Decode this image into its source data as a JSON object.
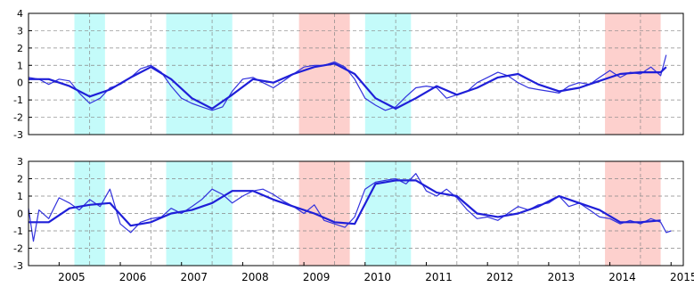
{
  "chart_data": [
    {
      "type": "line",
      "panel": "top",
      "xlim": [
        2004.5,
        2015.2
      ],
      "ylim": [
        -3,
        4
      ],
      "yticks": [
        4,
        3,
        2,
        1,
        0,
        -1,
        -2,
        -3
      ],
      "grid": true,
      "shaded_periods": [
        {
          "start": 2005.25,
          "end": 2005.75,
          "color": "#c4fbfa"
        },
        {
          "start": 2006.75,
          "end": 2007.83,
          "color": "#c4fbfa"
        },
        {
          "start": 2008.92,
          "end": 2009.75,
          "color": "#fdd0cd"
        },
        {
          "start": 2010.0,
          "end": 2010.75,
          "color": "#c4fbfa"
        },
        {
          "start": 2013.92,
          "end": 2014.83,
          "color": "#fdd0cd"
        }
      ],
      "series": [
        {
          "color": "#3333dd",
          "width": 1.2,
          "x": [
            2004.5,
            2004.67,
            2004.83,
            2005.0,
            2005.17,
            2005.33,
            2005.5,
            2005.67,
            2005.83,
            2006.0,
            2006.17,
            2006.33,
            2006.5,
            2006.67,
            2006.83,
            2007.0,
            2007.17,
            2007.33,
            2007.5,
            2007.67,
            2007.83,
            2008.0,
            2008.17,
            2008.33,
            2008.5,
            2008.67,
            2008.83,
            2009.0,
            2009.17,
            2009.33,
            2009.5,
            2009.67,
            2009.83,
            2010.0,
            2010.17,
            2010.33,
            2010.5,
            2010.67,
            2010.83,
            2011.0,
            2011.17,
            2011.33,
            2011.5,
            2011.67,
            2011.83,
            2012.0,
            2012.17,
            2012.33,
            2012.5,
            2012.67,
            2012.83,
            2013.0,
            2013.17,
            2013.33,
            2013.5,
            2013.67,
            2013.83,
            2014.0,
            2014.17,
            2014.33,
            2014.5,
            2014.67,
            2014.83,
            2014.92
          ],
          "y": [
            0.3,
            0.2,
            -0.1,
            0.2,
            0.1,
            -0.6,
            -1.2,
            -0.9,
            -0.3,
            -0.1,
            0.3,
            0.8,
            1.0,
            0.6,
            -0.2,
            -0.9,
            -1.2,
            -1.4,
            -1.6,
            -1.4,
            -0.5,
            0.2,
            0.3,
            0.0,
            -0.3,
            0.1,
            0.5,
            0.9,
            1.0,
            1.0,
            1.2,
            0.9,
            0.2,
            -0.9,
            -1.3,
            -1.6,
            -1.4,
            -0.8,
            -0.3,
            -0.2,
            -0.3,
            -0.9,
            -0.7,
            -0.5,
            0.0,
            0.3,
            0.6,
            0.4,
            0.0,
            -0.3,
            -0.4,
            -0.5,
            -0.6,
            -0.2,
            0.0,
            -0.1,
            0.3,
            0.7,
            0.3,
            0.6,
            0.5,
            0.9,
            0.4,
            1.6
          ]
        },
        {
          "color": "#1f1fd8",
          "width": 2.2,
          "x": [
            2004.5,
            2004.83,
            2005.17,
            2005.5,
            2005.83,
            2006.17,
            2006.5,
            2006.83,
            2007.17,
            2007.5,
            2007.83,
            2008.17,
            2008.5,
            2008.83,
            2009.17,
            2009.5,
            2009.83,
            2010.17,
            2010.5,
            2010.83,
            2011.17,
            2011.5,
            2011.83,
            2012.17,
            2012.5,
            2012.83,
            2013.17,
            2013.5,
            2013.83,
            2014.17,
            2014.5,
            2014.83,
            2014.92
          ],
          "y": [
            0.2,
            0.2,
            -0.2,
            -0.8,
            -0.4,
            0.3,
            0.9,
            0.2,
            -0.9,
            -1.5,
            -0.7,
            0.2,
            0.0,
            0.5,
            0.9,
            1.1,
            0.5,
            -0.9,
            -1.5,
            -0.9,
            -0.2,
            -0.7,
            -0.3,
            0.3,
            0.5,
            -0.1,
            -0.5,
            -0.3,
            0.1,
            0.5,
            0.6,
            0.6,
            0.9
          ]
        }
      ]
    },
    {
      "type": "line",
      "panel": "bottom",
      "xlim": [
        2004.5,
        2015.2
      ],
      "ylim": [
        -3,
        3
      ],
      "yticks": [
        3,
        2,
        1,
        0,
        -1,
        -2,
        -3
      ],
      "grid": true,
      "x_tick_labels": [
        "2005",
        "2006",
        "2007",
        "2008",
        "2009",
        "2010",
        "2011",
        "2012",
        "2013",
        "2014",
        "2015"
      ],
      "x_tick_values": [
        2005,
        2006,
        2007,
        2008,
        2009,
        2010,
        2011,
        2012,
        2013,
        2014,
        2015
      ],
      "shaded_periods": [
        {
          "start": 2005.25,
          "end": 2005.75,
          "color": "#c4fbfa"
        },
        {
          "start": 2006.75,
          "end": 2007.83,
          "color": "#c4fbfa"
        },
        {
          "start": 2008.92,
          "end": 2009.75,
          "color": "#fdd0cd"
        },
        {
          "start": 2010.0,
          "end": 2010.75,
          "color": "#c4fbfa"
        },
        {
          "start": 2013.92,
          "end": 2014.83,
          "color": "#fdd0cd"
        }
      ],
      "series": [
        {
          "color": "#3333dd",
          "width": 1.2,
          "x": [
            2004.5,
            2004.58,
            2004.67,
            2004.83,
            2005.0,
            2005.17,
            2005.33,
            2005.5,
            2005.67,
            2005.83,
            2006.0,
            2006.17,
            2006.33,
            2006.5,
            2006.67,
            2006.83,
            2007.0,
            2007.17,
            2007.33,
            2007.5,
            2007.67,
            2007.83,
            2008.0,
            2008.17,
            2008.33,
            2008.5,
            2008.67,
            2008.83,
            2009.0,
            2009.17,
            2009.33,
            2009.5,
            2009.67,
            2009.83,
            2010.0,
            2010.17,
            2010.33,
            2010.5,
            2010.67,
            2010.83,
            2011.0,
            2011.17,
            2011.33,
            2011.5,
            2011.67,
            2011.83,
            2012.0,
            2012.17,
            2012.33,
            2012.5,
            2012.67,
            2012.83,
            2013.0,
            2013.17,
            2013.33,
            2013.5,
            2013.67,
            2013.83,
            2014.0,
            2014.17,
            2014.33,
            2014.5,
            2014.67,
            2014.83,
            2014.92,
            2015.0
          ],
          "y": [
            0.3,
            -1.6,
            0.2,
            -0.3,
            0.9,
            0.6,
            0.2,
            0.8,
            0.4,
            1.4,
            -0.6,
            -1.1,
            -0.5,
            -0.3,
            -0.2,
            0.3,
            0.0,
            0.4,
            0.8,
            1.4,
            1.1,
            0.6,
            1.0,
            1.3,
            1.4,
            1.1,
            0.7,
            0.4,
            0.0,
            0.5,
            -0.4,
            -0.6,
            -0.8,
            -0.2,
            1.4,
            1.8,
            1.9,
            2.0,
            1.7,
            2.3,
            1.3,
            1.0,
            1.4,
            0.9,
            0.2,
            -0.3,
            -0.2,
            -0.4,
            0.0,
            0.4,
            0.2,
            0.5,
            0.6,
            1.0,
            0.4,
            0.6,
            0.2,
            -0.2,
            -0.3,
            -0.6,
            -0.4,
            -0.6,
            -0.3,
            -0.5,
            -1.1,
            -1.0
          ]
        },
        {
          "color": "#1f1fd8",
          "width": 2.2,
          "x": [
            2004.5,
            2004.83,
            2005.17,
            2005.5,
            2005.83,
            2006.17,
            2006.5,
            2006.83,
            2007.17,
            2007.5,
            2007.83,
            2008.17,
            2008.5,
            2008.83,
            2009.17,
            2009.5,
            2009.83,
            2010.17,
            2010.5,
            2010.83,
            2011.17,
            2011.5,
            2011.83,
            2012.17,
            2012.5,
            2012.83,
            2013.17,
            2013.5,
            2013.83,
            2014.17,
            2014.5,
            2014.83
          ],
          "y": [
            -0.5,
            -0.5,
            0.3,
            0.5,
            0.6,
            -0.7,
            -0.5,
            0.0,
            0.2,
            0.6,
            1.3,
            1.3,
            0.8,
            0.4,
            0.0,
            -0.5,
            -0.6,
            1.7,
            1.9,
            1.9,
            1.2,
            1.0,
            0.0,
            -0.2,
            0.0,
            0.4,
            1.0,
            0.6,
            0.2,
            -0.5,
            -0.5,
            -0.4
          ]
        }
      ]
    }
  ]
}
